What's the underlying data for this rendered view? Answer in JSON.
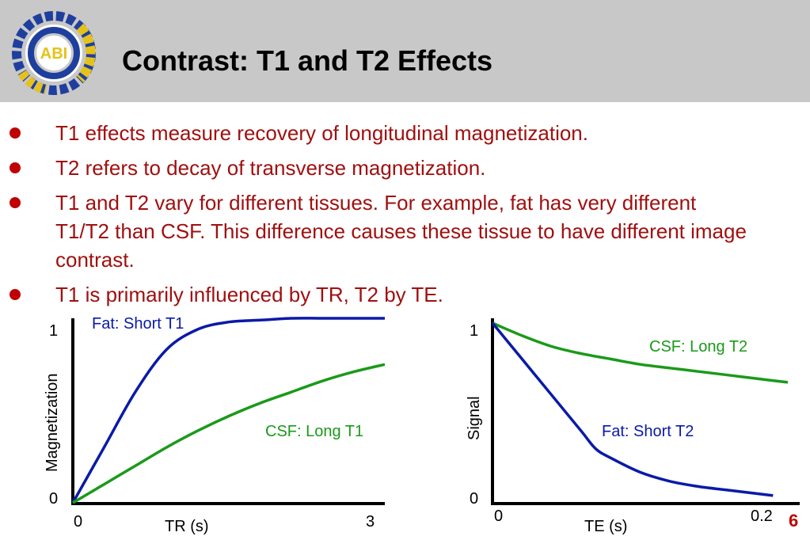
{
  "slide": {
    "title": "Contrast: T1 and T2 Effects",
    "logo_text": "ABI",
    "page_number": "6"
  },
  "bullets": [
    "T1 effects measure recovery of longitudinal magnetization.",
    "T2 refers to decay of transverse magnetization.",
    "T1 and T2 vary for different tissues. For example, fat has very different T1/T2 than CSF. This difference causes these tissue to have different image contrast.",
    "T1 is primarily influenced by TR, T2 by TE."
  ],
  "colors": {
    "header_bg": "#c8c8c8",
    "bullet_text": "#a01010",
    "fat_curve": "#0a1aa8",
    "csf_curve": "#1a9a1a"
  },
  "chart_data": [
    {
      "type": "line",
      "xlabel": "TR (s)",
      "ylabel": "Magnetization",
      "xlim": [
        0,
        3
      ],
      "ylim": [
        0,
        1
      ],
      "x_tick_labels": [
        "0",
        "3"
      ],
      "y_tick_labels": [
        "0",
        "1"
      ],
      "series": [
        {
          "name": "Fat: Short T1",
          "color": "#0a1aa8",
          "x": [
            0,
            0.3,
            0.6,
            0.9,
            1.2,
            1.5,
            1.8,
            2.1,
            2.4,
            2.7,
            3.0
          ],
          "y": [
            0,
            0.3,
            0.6,
            0.83,
            0.94,
            0.98,
            0.99,
            1.0,
            1.0,
            1.0,
            1.0
          ]
        },
        {
          "name": "CSF: Long T1",
          "color": "#1a9a1a",
          "x": [
            0,
            0.3,
            0.6,
            0.9,
            1.2,
            1.5,
            1.8,
            2.1,
            2.4,
            2.7,
            3.0
          ],
          "y": [
            0,
            0.1,
            0.2,
            0.3,
            0.39,
            0.47,
            0.54,
            0.6,
            0.66,
            0.71,
            0.75
          ]
        }
      ]
    },
    {
      "type": "line",
      "xlabel": "TE (s)",
      "ylabel": "Signal",
      "xlim": [
        0,
        0.2
      ],
      "ylim": [
        0,
        1
      ],
      "x_tick_labels": [
        "0",
        "0.2"
      ],
      "y_tick_labels": [
        "0",
        "1"
      ],
      "series": [
        {
          "name": "CSF: Long T2",
          "color": "#1a9a1a",
          "x": [
            0,
            0.02,
            0.04,
            0.06,
            0.08,
            0.1,
            0.12,
            0.14,
            0.16,
            0.18,
            0.2
          ],
          "y": [
            1.0,
            0.93,
            0.87,
            0.83,
            0.8,
            0.77,
            0.75,
            0.73,
            0.71,
            0.69,
            0.67
          ]
        },
        {
          "name": "Fat: Short T2",
          "color": "#0a1aa8",
          "x": [
            0,
            0.02,
            0.04,
            0.06,
            0.07,
            0.08,
            0.1,
            0.12,
            0.14,
            0.16,
            0.19
          ],
          "y": [
            1.0,
            0.8,
            0.6,
            0.4,
            0.3,
            0.25,
            0.17,
            0.12,
            0.09,
            0.07,
            0.04
          ]
        }
      ]
    }
  ]
}
